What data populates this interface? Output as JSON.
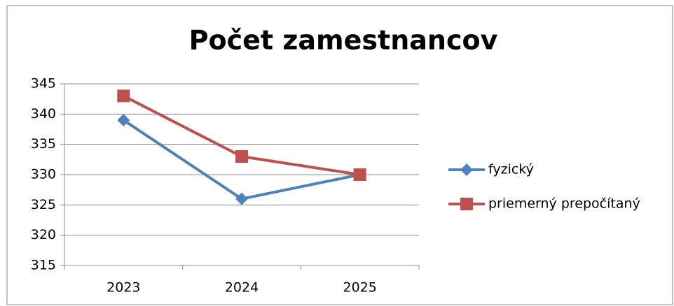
{
  "chart_data": {
    "type": "line",
    "title": "Počet zamestnancov",
    "categories": [
      "2023",
      "2024",
      "2025"
    ],
    "series": [
      {
        "name": "fyzický",
        "color": "#4f81bd",
        "marker": "diamond",
        "values": [
          339,
          326,
          330
        ]
      },
      {
        "name": "priemerný prepočítaný",
        "color": "#c0504d",
        "marker": "square",
        "values": [
          343,
          333,
          330
        ]
      }
    ],
    "ylim": [
      315,
      345
    ],
    "yticks": [
      315,
      320,
      325,
      330,
      335,
      340,
      345
    ],
    "grid": true,
    "legend": "right"
  }
}
